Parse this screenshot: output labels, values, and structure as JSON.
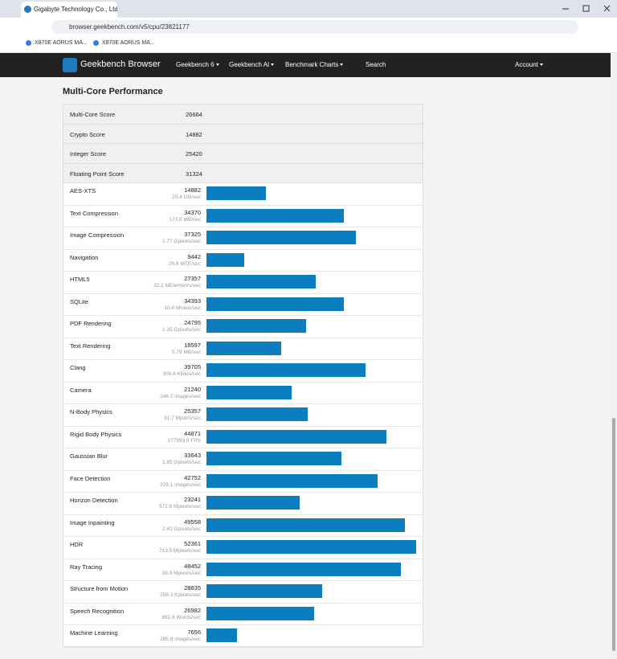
{
  "browser": {
    "tab_title": "Gigabyte Technology Co., Ltd",
    "url": "browser.geekbench.com/v5/cpu/23821177",
    "bookmarks": [
      "X870E AORUS MA...",
      "X870E AORUS MA..."
    ]
  },
  "nav": {
    "brand": "Geekbench Browser",
    "items": [
      "Geekbench 6",
      "Geekbench AI",
      "Benchmark Charts"
    ],
    "search": "Search",
    "account": "Account"
  },
  "section": {
    "title": "Multi-Core Performance",
    "summary": [
      [
        "Multi-Core Score",
        26664
      ],
      [
        "Crypto Score",
        14882
      ],
      [
        "Integer Score",
        25420
      ],
      [
        "Floating Point Score",
        31324
      ]
    ],
    "workloads": [
      {
        "name": "AES-XTS",
        "score": 14882,
        "detail": "25.4 GB/sec"
      },
      {
        "name": "Text Compression",
        "score": 34370,
        "detail": "173.8 MB/sec"
      },
      {
        "name": "Image Compression",
        "score": 37325,
        "detail": "1.77 Gpixels/sec"
      },
      {
        "name": "Navigation",
        "score": 9442,
        "detail": "26.6 MTE/sec"
      },
      {
        "name": "HTML5",
        "score": 27357,
        "detail": "32.1 MElements/sec"
      },
      {
        "name": "SQLite",
        "score": 34393,
        "detail": "10.6 Mrows/sec"
      },
      {
        "name": "PDF Rendering",
        "score": 24795,
        "detail": "1.35 Gpixels/sec"
      },
      {
        "name": "Text Rendering",
        "score": 18597,
        "detail": "5.79 MB/sec"
      },
      {
        "name": "Clang",
        "score": 39705,
        "detail": "309.4 Klines/sec"
      },
      {
        "name": "Camera",
        "score": 21240,
        "detail": "246.2 images/sec"
      },
      {
        "name": "N-Body Physics",
        "score": 25357,
        "detail": "31.7 Mpairs/sec"
      },
      {
        "name": "Rigid Body Physics",
        "score": 44871,
        "detail": "277993.9 FPS"
      },
      {
        "name": "Gaussian Blur",
        "score": 33643,
        "detail": "1.85 Gpixels/sec"
      },
      {
        "name": "Face Detection",
        "score": 42752,
        "detail": "329.1 images/sec"
      },
      {
        "name": "Horizon Detection",
        "score": 23241,
        "detail": "572.9 Mpixels/sec"
      },
      {
        "name": "Image Inpainting",
        "score": 49558,
        "detail": "2.43 Gpixels/sec"
      },
      {
        "name": "HDR",
        "score": 52361,
        "detail": "713.5 Mpixels/sec"
      },
      {
        "name": "Ray Tracing",
        "score": 48452,
        "detail": "38.9 Mpixels/sec"
      },
      {
        "name": "Structure from Motion",
        "score": 28835,
        "detail": "256.3 Kpixels/sec"
      },
      {
        "name": "Speech Recognition",
        "score": 26982,
        "detail": "862.6 Words/sec"
      },
      {
        "name": "Machine Learning",
        "score": 7656,
        "detail": "295.8 images/sec"
      }
    ]
  }
}
